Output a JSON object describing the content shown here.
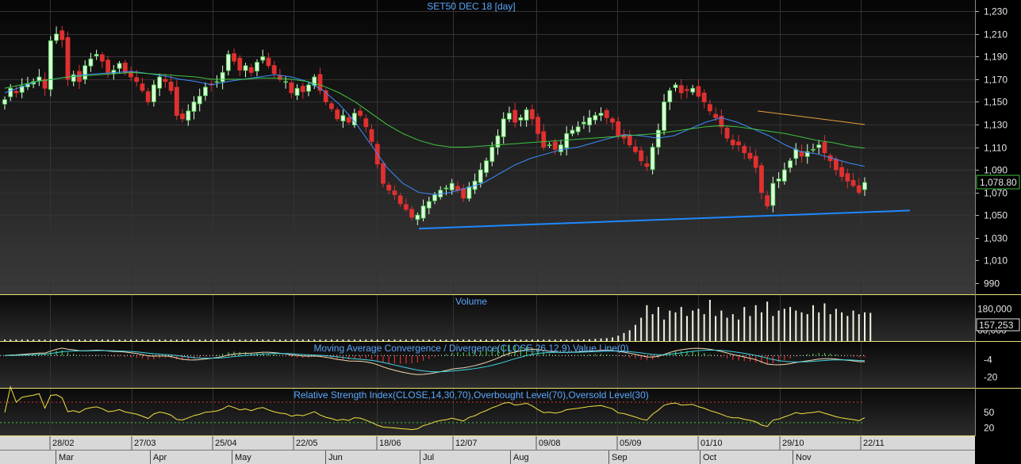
{
  "chart_data": {
    "type": "candlestick",
    "title": "SET50 DEC 18    [day]",
    "price_axis": {
      "ylim": [
        980,
        1240
      ],
      "ticks": [
        990,
        1010,
        1030,
        1050,
        1070,
        1090,
        1110,
        1130,
        1150,
        1170,
        1190,
        1210,
        1230
      ]
    },
    "last_price_label": "1,078.80",
    "last_price": 1078.8,
    "date_ticks": [
      "28/02",
      "27/03",
      "25/04",
      "22/05",
      "18/06",
      "12/07",
      "09/08",
      "05/09",
      "01/10",
      "29/10",
      "22/11"
    ],
    "month_labels": [
      "Mar",
      "Apr",
      "May",
      "Jun",
      "Jul",
      "Aug",
      "Sep",
      "Oct",
      "Nov"
    ],
    "close_path": [
      [
        1152,
        1162,
        1158,
        1164,
        1166,
        1168,
        1172,
        1162,
        1204,
        1210,
        1205,
        1170,
        1174,
        1168,
        1182,
        1188,
        1192,
        1186,
        1176,
        1178,
        1184,
        1176,
        1172,
        1168,
        1160,
        1150,
        1165,
        1172,
        1168,
        1160,
        1138,
        1135,
        1142,
        1150,
        1155,
        1163,
        1165,
        1168,
        1176,
        1192,
        1186,
        1178,
        1182,
        1176,
        1185,
        1190,
        1182,
        1175,
        1170,
        1168,
        1158,
        1162,
        1159,
        1165,
        1172,
        1160,
        1150,
        1144,
        1135,
        1138,
        1132,
        1140,
        1138,
        1128,
        1115,
        1095,
        1078,
        1072,
        1068,
        1060,
        1055,
        1048,
        1050,
        1058,
        1062,
        1068,
        1072,
        1074,
        1078,
        1072,
        1065,
        1075,
        1080,
        1090,
        1098,
        1110,
        1120,
        1135,
        1140,
        1132,
        1136,
        1143,
        1135,
        1122,
        1110,
        1112,
        1108,
        1112,
        1122,
        1125,
        1128,
        1132,
        1136,
        1138,
        1140,
        1136,
        1132,
        1120,
        1118,
        1112,
        1106,
        1098,
        1093,
        1110,
        1125,
        1150,
        1160,
        1165,
        1158,
        1160,
        1162,
        1155,
        1150,
        1142,
        1136,
        1128,
        1118,
        1112,
        1112,
        1105,
        1100,
        1092,
        1070,
        1058,
        1078,
        1082,
        1090,
        1098,
        1108,
        1102,
        1106,
        1108,
        1112,
        1105,
        1098,
        1090,
        1084,
        1080,
        1076,
        1070,
        1078.8
      ]
    ],
    "moving_averages": [
      {
        "color": "#3b8cff",
        "from_bar": 0,
        "values": [
          1158,
          1163,
          1168,
          1170,
          1172,
          1174,
          1175,
          1176,
          1177,
          1175,
          1173,
          1170,
          1168,
          1165,
          1168,
          1170,
          1172,
          1174,
          1172,
          1168,
          1160,
          1148,
          1132,
          1112,
          1092,
          1078,
          1070,
          1068,
          1070,
          1074,
          1078,
          1086,
          1094,
          1100,
          1104,
          1108,
          1110,
          1114,
          1118,
          1121,
          1120,
          1118,
          1120,
          1126,
          1132,
          1136,
          1132,
          1126,
          1120,
          1112,
          1106,
          1104,
          1100,
          1096,
          1093
        ]
      },
      {
        "color": "#3ec43e",
        "from_bar": 0,
        "values": [
          1162,
          1165,
          1168,
          1170,
          1172,
          1173,
          1174,
          1175,
          1176,
          1175,
          1174,
          1173,
          1172,
          1170,
          1170,
          1170,
          1171,
          1171,
          1170,
          1168,
          1164,
          1158,
          1150,
          1140,
          1130,
          1122,
          1116,
          1112,
          1110,
          1110,
          1111,
          1112,
          1113,
          1114,
          1115,
          1116,
          1117,
          1118,
          1119,
          1120,
          1121,
          1122,
          1124,
          1126,
          1128,
          1129,
          1128,
          1126,
          1124,
          1122,
          1119,
          1116,
          1114,
          1111,
          1109
        ]
      },
      {
        "color": "#e8a13b",
        "from_bar": 132,
        "values": [
          1142,
          1140,
          1138,
          1136,
          1134,
          1132,
          1130
        ]
      }
    ],
    "trend_line": {
      "color": "#1e88ff",
      "from": [
        1038,
        0.37
      ],
      "to": [
        1054,
        0.89
      ]
    },
    "volume": {
      "title": "Volume",
      "ticks": [
        180000,
        60000
      ],
      "tick_labels": [
        "180,000",
        "60,000"
      ],
      "last_label": "157,253",
      "last_value": 157253,
      "values": [
        8000,
        8000,
        8000,
        8000,
        8000,
        8000,
        8000,
        8000,
        8000,
        8000,
        8000,
        8000,
        8000,
        8000,
        8000,
        8000,
        8000,
        8000,
        8000,
        8000,
        8000,
        8000,
        8000,
        8000,
        8000,
        8000,
        8000,
        8000,
        8000,
        8000,
        8000,
        8000,
        8000,
        8000,
        8000,
        8000,
        8000,
        8000,
        8000,
        8000,
        8000,
        8000,
        8000,
        8000,
        8000,
        8000,
        8000,
        8000,
        8000,
        8000,
        8000,
        8000,
        8000,
        8000,
        8000,
        8000,
        8000,
        8000,
        8000,
        8000,
        8000,
        8000,
        8000,
        8000,
        8000,
        8000,
        8000,
        8000,
        8000,
        8000,
        8000,
        8000,
        8000,
        8000,
        8000,
        8000,
        8000,
        8000,
        8000,
        8000,
        8000,
        8000,
        8000,
        8000,
        8000,
        8000,
        8000,
        8000,
        8000,
        8000,
        8000,
        8000,
        8000,
        8000,
        8000,
        8000,
        8000,
        8000,
        8000,
        8000,
        8000,
        9000,
        10000,
        12000,
        14000,
        16000,
        20000,
        30000,
        45000,
        60000,
        90000,
        130000,
        200000,
        150000,
        190000,
        120000,
        170000,
        160000,
        190000,
        140000,
        170000,
        180000,
        150000,
        230000,
        140000,
        170000,
        130000,
        150000,
        120000,
        190000,
        140000,
        200000,
        160000,
        220000,
        140000,
        170000,
        180000,
        190000,
        170000,
        160000,
        150000,
        200000,
        160000,
        210000,
        150000,
        180000,
        160000,
        140000,
        170000,
        150000,
        160000,
        157253
      ]
    },
    "macd": {
      "title": "Moving Average Convergence / Divergence(CLOSE,26,12,9),Value Line(0)",
      "ticks": [
        -4,
        -20
      ],
      "ylim": [
        -30,
        12
      ]
    },
    "rsi": {
      "title": "Relative Strength Index(CLOSE,14,30,70),Overbought Level(70),Oversold Level(30)",
      "ticks": [
        50,
        20
      ],
      "ylim": [
        5,
        95
      ],
      "overbought": 70,
      "oversold": 30
    }
  }
}
